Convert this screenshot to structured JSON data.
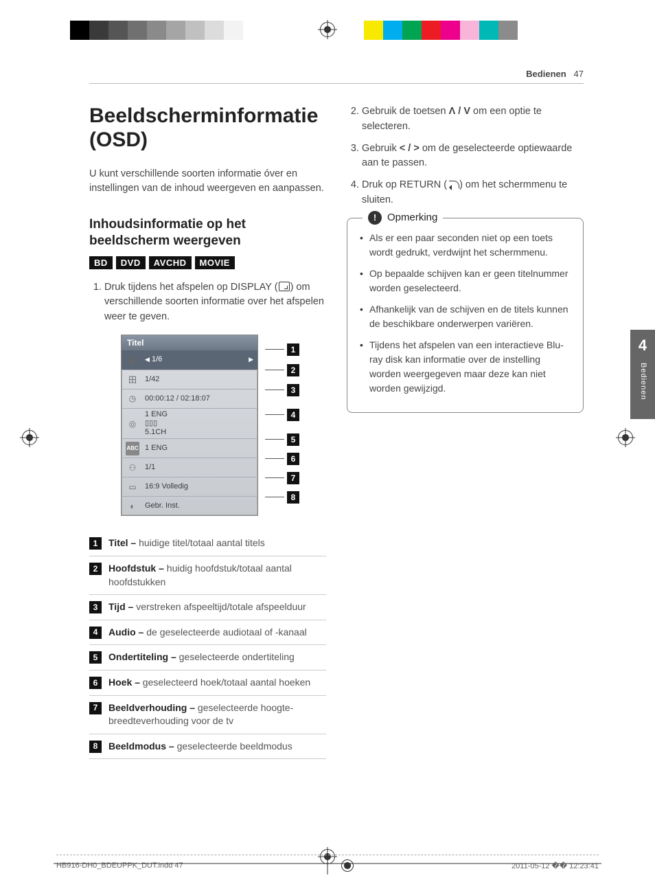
{
  "colorbar_left": [
    "#000000",
    "#3a3a3a",
    "#555555",
    "#707070",
    "#8a8a8a",
    "#a5a5a5",
    "#c0c0c0",
    "#dcdcdc",
    "#f3f3f3",
    "#ffffff"
  ],
  "colorbar_right": [
    "#f7ea00",
    "#00aeef",
    "#00a451",
    "#ed1c24",
    "#ec008c",
    "#f8b4d9",
    "#00b8b5",
    "#8b8b8b",
    "#ffffff"
  ],
  "header": {
    "section": "Bedienen",
    "page_num": "47"
  },
  "h1": "Beeldscherminformatie (OSD)",
  "intro": "U kunt verschillende soorten informatie óver en instellingen van de inhoud weergeven en aanpassen.",
  "h2": "Inhoudsinformatie op het beeldscherm weergeven",
  "badges": [
    "BD",
    "DVD",
    "AVCHD",
    "MOVIE"
  ],
  "step1_a": "Druk tijdens het afspelen op DISPLAY ",
  "step1_b": " om verschillende soorten informatie over het afspelen weer te geven.",
  "osd": {
    "title": "Titel",
    "rows": [
      {
        "icon": "◉",
        "val": "1/6",
        "hl": true,
        "arrows": true
      },
      {
        "icon": "⽥",
        "val": "1/42"
      },
      {
        "icon": "◷",
        "val": "00:00:12 / 02:18:07"
      },
      {
        "icon": "◎",
        "val": "1 ENG\n▯▯▯\n5.1CH"
      },
      {
        "icon": "ABC",
        "val": "1 ENG",
        "icobg": true
      },
      {
        "icon": "⚇",
        "val": "1/1"
      },
      {
        "icon": "▭",
        "val": "16:9 Volledig"
      },
      {
        "icon": "◐",
        "val": "Gebr. Inst."
      }
    ]
  },
  "defs": [
    {
      "n": "1",
      "b": "Titel –",
      "t": " huidige titel/totaal aantal titels"
    },
    {
      "n": "2",
      "b": "Hoofdstuk –",
      "t": " huidig hoofdstuk/totaal aantal hoofdstukken"
    },
    {
      "n": "3",
      "b": "Tijd –",
      "t": " verstreken afspeeltijd/totale afspeelduur"
    },
    {
      "n": "4",
      "b": "Audio –",
      "t": " de geselecteerde audiotaal of -kanaal"
    },
    {
      "n": "5",
      "b": "Ondertiteling –",
      "t": " geselecteerde ondertiteling"
    },
    {
      "n": "6",
      "b": "Hoek –",
      "t": " geselecteerd hoek/totaal aantal hoeken"
    },
    {
      "n": "7",
      "b": "Beeldverhouding –",
      "t": " geselecteerde hoogte-breedteverhouding voor de tv"
    },
    {
      "n": "8",
      "b": "Beeldmodus –",
      "t": " geselecteerde beeldmodus"
    }
  ],
  "right_steps": [
    {
      "n": "2.",
      "pre": "Gebruik de toetsen ",
      "sym": "Λ / V",
      "post": " om een optie te selecteren."
    },
    {
      "n": "3.",
      "pre": "Gebruik ",
      "sym": "< / >",
      "post": " om de geselecteerde optiewaarde aan te passen."
    },
    {
      "n": "4.",
      "pre": "Druk op RETURN (",
      "icon": "ret",
      "post": ") om het schermmenu te sluiten."
    }
  ],
  "note_title": "Opmerking",
  "notes": [
    "Als er een paar seconden niet op een toets wordt gedrukt, verdwijnt het schermmenu.",
    "Op bepaalde schijven kan er geen titelnummer worden geselecteerd.",
    "Afhankelijk van de schijven en de titels kunnen de beschikbare onderwerpen variëren.",
    "Tijdens het afspelen van een interactieve Blu-ray disk kan informatie over de instelling worden weergegeven maar deze kan niet worden gewijzigd."
  ],
  "sidetab": {
    "num": "4",
    "label": "Bedienen"
  },
  "footer": {
    "file": "HB916-DH0_BDEUPPK_DUT.indd   47",
    "date": "2011-05-12   �� 12:23:41"
  }
}
